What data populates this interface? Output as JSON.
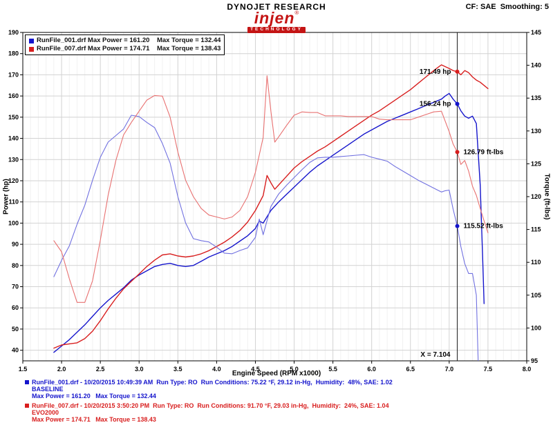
{
  "header": {
    "brand": "DYNOJET RESEARCH",
    "logo_text": "injen",
    "logo_reg": "®",
    "logo_sub": "TECHNOLOGY",
    "settings": "CF: SAE  Smoothing: 5"
  },
  "legend": {
    "rows": [
      {
        "color": "#1414cc",
        "text": "RunFile_001.drf Max Power = 161.20    Max Torque = 132.44"
      },
      {
        "color": "#d81e1e",
        "text": "RunFile_007.drf Max Power = 174.71    Max Torque = 138.43"
      }
    ]
  },
  "chart_data": {
    "type": "line",
    "title": "",
    "xlabel": "Engine Speed (RPM x1000)",
    "ylabel_left": "Power (hp)",
    "ylabel_right": "Torque (ft-lbs)",
    "x_range": [
      1.5,
      8.0
    ],
    "y_left_range": [
      35,
      190
    ],
    "y_right_range": [
      95,
      145
    ],
    "x_ticks": [
      1.5,
      2,
      2.5,
      3,
      3.5,
      4,
      4.5,
      5,
      5.5,
      6,
      6.5,
      7,
      7.5,
      8
    ],
    "x_tick_labels": [
      "1.5",
      "2.0",
      "2.5",
      "3.0",
      "3.5",
      "4.0",
      "4.5",
      "5.0",
      "5.5",
      "6.0",
      "6.5",
      "7.0",
      "7.5",
      "8.0"
    ],
    "y_left_ticks": [
      190,
      180,
      170,
      160,
      150,
      140,
      130,
      120,
      110,
      100,
      90,
      80,
      70,
      60,
      50,
      40
    ],
    "y_right_ticks": [
      145,
      140,
      135,
      130,
      125,
      120,
      115,
      110,
      105,
      100,
      95
    ],
    "grid": true,
    "legend_position": "top-left",
    "cursor_x": 7.104,
    "cursor_label": "X = 7.104",
    "series": [
      {
        "id": "power-baseline",
        "name": "RunFile_001.drf Power",
        "axis": "left",
        "color": "#1414cc",
        "width": 1.4,
        "points": [
          [
            1.9,
            39
          ],
          [
            2.0,
            42
          ],
          [
            2.1,
            45
          ],
          [
            2.2,
            48.5
          ],
          [
            2.3,
            52
          ],
          [
            2.4,
            56
          ],
          [
            2.5,
            60
          ],
          [
            2.6,
            63.5
          ],
          [
            2.7,
            66.5
          ],
          [
            2.8,
            69.5
          ],
          [
            2.9,
            73.1
          ],
          [
            3.0,
            75.5
          ],
          [
            3.1,
            77.5
          ],
          [
            3.2,
            79.5
          ],
          [
            3.3,
            80.5
          ],
          [
            3.4,
            81
          ],
          [
            3.5,
            80
          ],
          [
            3.6,
            79.5
          ],
          [
            3.7,
            80
          ],
          [
            3.8,
            82
          ],
          [
            3.9,
            84
          ],
          [
            4.0,
            85.5
          ],
          [
            4.1,
            87
          ],
          [
            4.2,
            89
          ],
          [
            4.3,
            91.5
          ],
          [
            4.4,
            94
          ],
          [
            4.5,
            97.5
          ],
          [
            4.55,
            101
          ],
          [
            4.6,
            100
          ],
          [
            4.7,
            106
          ],
          [
            4.8,
            110
          ],
          [
            4.9,
            113.5
          ],
          [
            5.0,
            117
          ],
          [
            5.1,
            120.5
          ],
          [
            5.2,
            124
          ],
          [
            5.3,
            127
          ],
          [
            5.4,
            129.5
          ],
          [
            5.5,
            132
          ],
          [
            5.6,
            134.5
          ],
          [
            5.7,
            137
          ],
          [
            5.8,
            139.5
          ],
          [
            5.9,
            142
          ],
          [
            6.0,
            144
          ],
          [
            6.1,
            146
          ],
          [
            6.2,
            148
          ],
          [
            6.3,
            149.5
          ],
          [
            6.4,
            151
          ],
          [
            6.5,
            152.5
          ],
          [
            6.6,
            154
          ],
          [
            6.7,
            155.5
          ],
          [
            6.8,
            157
          ],
          [
            6.9,
            158.5
          ],
          [
            6.95,
            160
          ],
          [
            7.0,
            161.2
          ],
          [
            7.05,
            158.5
          ],
          [
            7.104,
            156.24
          ],
          [
            7.15,
            153
          ],
          [
            7.2,
            150.5
          ],
          [
            7.25,
            149.5
          ],
          [
            7.3,
            150.5
          ],
          [
            7.35,
            147
          ],
          [
            7.4,
            118
          ],
          [
            7.43,
            85
          ],
          [
            7.45,
            62
          ]
        ]
      },
      {
        "id": "power-evo2000",
        "name": "RunFile_007.drf Power",
        "axis": "left",
        "color": "#d81e1e",
        "width": 1.4,
        "points": [
          [
            1.9,
            41
          ],
          [
            2.0,
            42.5
          ],
          [
            2.1,
            43
          ],
          [
            2.2,
            43.5
          ],
          [
            2.3,
            45.5
          ],
          [
            2.4,
            49
          ],
          [
            2.5,
            54
          ],
          [
            2.6,
            59.5
          ],
          [
            2.7,
            64.5
          ],
          [
            2.8,
            69
          ],
          [
            2.9,
            72.5
          ],
          [
            3.0,
            76
          ],
          [
            3.1,
            79.5
          ],
          [
            3.2,
            82.5
          ],
          [
            3.3,
            85
          ],
          [
            3.4,
            85.5
          ],
          [
            3.5,
            84.5
          ],
          [
            3.6,
            84
          ],
          [
            3.7,
            84.5
          ],
          [
            3.8,
            85.5
          ],
          [
            3.9,
            87
          ],
          [
            4.0,
            89
          ],
          [
            4.1,
            91
          ],
          [
            4.2,
            93.5
          ],
          [
            4.3,
            96.5
          ],
          [
            4.4,
            100.5
          ],
          [
            4.5,
            106
          ],
          [
            4.6,
            113
          ],
          [
            4.65,
            122.5
          ],
          [
            4.7,
            119
          ],
          [
            4.75,
            116
          ],
          [
            4.8,
            118
          ],
          [
            4.9,
            122
          ],
          [
            5.0,
            126
          ],
          [
            5.1,
            129
          ],
          [
            5.2,
            131.5
          ],
          [
            5.3,
            134
          ],
          [
            5.4,
            136
          ],
          [
            5.5,
            138.5
          ],
          [
            5.6,
            141
          ],
          [
            5.7,
            143.5
          ],
          [
            5.8,
            146
          ],
          [
            5.9,
            148.5
          ],
          [
            6.0,
            151
          ],
          [
            6.1,
            153
          ],
          [
            6.2,
            155.5
          ],
          [
            6.3,
            158
          ],
          [
            6.4,
            160.5
          ],
          [
            6.5,
            163
          ],
          [
            6.6,
            166
          ],
          [
            6.7,
            169
          ],
          [
            6.8,
            172
          ],
          [
            6.9,
            174.71
          ],
          [
            7.0,
            173
          ],
          [
            7.05,
            172
          ],
          [
            7.104,
            171.49
          ],
          [
            7.15,
            170
          ],
          [
            7.2,
            172
          ],
          [
            7.25,
            171
          ],
          [
            7.3,
            169
          ],
          [
            7.35,
            167.5
          ],
          [
            7.4,
            166.5
          ],
          [
            7.45,
            165
          ],
          [
            7.5,
            163.5
          ]
        ]
      },
      {
        "id": "torque-baseline",
        "name": "RunFile_001.drf Torque",
        "axis": "right",
        "color": "#7070e0",
        "width": 1.1,
        "points": [
          [
            1.9,
            107.8
          ],
          [
            2.0,
            110.3
          ],
          [
            2.1,
            112.5
          ],
          [
            2.2,
            115.8
          ],
          [
            2.3,
            118.7
          ],
          [
            2.4,
            122.5
          ],
          [
            2.5,
            126.0
          ],
          [
            2.6,
            128.3
          ],
          [
            2.7,
            129.3
          ],
          [
            2.8,
            130.3
          ],
          [
            2.9,
            132.4
          ],
          [
            3.0,
            132.2
          ],
          [
            3.1,
            131.3
          ],
          [
            3.2,
            130.5
          ],
          [
            3.3,
            128.1
          ],
          [
            3.4,
            125.1
          ],
          [
            3.5,
            120.0
          ],
          [
            3.6,
            116.0
          ],
          [
            3.7,
            113.6
          ],
          [
            3.8,
            113.3
          ],
          [
            3.9,
            113.1
          ],
          [
            4.0,
            112.3
          ],
          [
            4.1,
            111.4
          ],
          [
            4.2,
            111.3
          ],
          [
            4.3,
            111.8
          ],
          [
            4.4,
            112.2
          ],
          [
            4.5,
            113.8
          ],
          [
            4.55,
            116.6
          ],
          [
            4.6,
            114.2
          ],
          [
            4.7,
            118.5
          ],
          [
            4.8,
            120.4
          ],
          [
            4.9,
            121.7
          ],
          [
            5.0,
            122.9
          ],
          [
            5.1,
            124.1
          ],
          [
            5.2,
            125.2
          ],
          [
            5.3,
            125.9
          ],
          [
            5.4,
            126.0
          ],
          [
            5.5,
            126.0
          ],
          [
            5.6,
            126.1
          ],
          [
            5.7,
            126.2
          ],
          [
            5.8,
            126.3
          ],
          [
            5.9,
            126.4
          ],
          [
            6.0,
            126.0
          ],
          [
            6.1,
            125.7
          ],
          [
            6.2,
            125.4
          ],
          [
            6.3,
            124.6
          ],
          [
            6.4,
            123.9
          ],
          [
            6.5,
            123.2
          ],
          [
            6.6,
            122.5
          ],
          [
            6.7,
            121.9
          ],
          [
            6.8,
            121.3
          ],
          [
            6.9,
            120.7
          ],
          [
            6.95,
            120.9
          ],
          [
            7.0,
            121.0
          ],
          [
            7.05,
            118.1
          ],
          [
            7.104,
            115.52
          ],
          [
            7.15,
            112.4
          ],
          [
            7.2,
            109.8
          ],
          [
            7.25,
            108.3
          ],
          [
            7.3,
            108.3
          ],
          [
            7.35,
            105.0
          ],
          [
            7.4,
            83.8
          ]
        ]
      },
      {
        "id": "torque-evo2000",
        "name": "RunFile_007.drf Torque",
        "axis": "right",
        "color": "#e87070",
        "width": 1.1,
        "points": [
          [
            1.9,
            113.3
          ],
          [
            2.0,
            111.6
          ],
          [
            2.1,
            107.5
          ],
          [
            2.2,
            103.9
          ],
          [
            2.3,
            103.9
          ],
          [
            2.4,
            107.2
          ],
          [
            2.5,
            113.4
          ],
          [
            2.6,
            120.2
          ],
          [
            2.7,
            125.5
          ],
          [
            2.8,
            129.4
          ],
          [
            2.9,
            131.3
          ],
          [
            3.0,
            133.0
          ],
          [
            3.1,
            134.7
          ],
          [
            3.2,
            135.4
          ],
          [
            3.3,
            135.3
          ],
          [
            3.4,
            132.1
          ],
          [
            3.5,
            126.8
          ],
          [
            3.6,
            122.5
          ],
          [
            3.7,
            120.0
          ],
          [
            3.8,
            118.2
          ],
          [
            3.9,
            117.2
          ],
          [
            4.0,
            116.9
          ],
          [
            4.1,
            116.6
          ],
          [
            4.2,
            116.9
          ],
          [
            4.3,
            117.9
          ],
          [
            4.4,
            120.0
          ],
          [
            4.5,
            123.7
          ],
          [
            4.6,
            129.0
          ],
          [
            4.65,
            138.4
          ],
          [
            4.7,
            133.0
          ],
          [
            4.75,
            128.3
          ],
          [
            4.8,
            129.1
          ],
          [
            4.9,
            130.8
          ],
          [
            5.0,
            132.4
          ],
          [
            5.1,
            132.9
          ],
          [
            5.2,
            132.8
          ],
          [
            5.3,
            132.8
          ],
          [
            5.4,
            132.3
          ],
          [
            5.5,
            132.3
          ],
          [
            5.6,
            132.3
          ],
          [
            5.7,
            132.2
          ],
          [
            5.8,
            132.2
          ],
          [
            5.9,
            132.2
          ],
          [
            6.0,
            132.2
          ],
          [
            6.1,
            131.8
          ],
          [
            6.2,
            131.7
          ],
          [
            6.3,
            131.7
          ],
          [
            6.4,
            131.7
          ],
          [
            6.5,
            131.7
          ],
          [
            6.6,
            132.1
          ],
          [
            6.7,
            132.5
          ],
          [
            6.8,
            132.9
          ],
          [
            6.9,
            133.0
          ],
          [
            7.0,
            129.9
          ],
          [
            7.05,
            128.0
          ],
          [
            7.104,
            126.79
          ],
          [
            7.15,
            124.9
          ],
          [
            7.2,
            125.5
          ],
          [
            7.25,
            123.9
          ],
          [
            7.3,
            121.6
          ],
          [
            7.35,
            120.2
          ],
          [
            7.4,
            118.2
          ],
          [
            7.45,
            116.3
          ],
          [
            7.5,
            114.5
          ]
        ]
      }
    ],
    "markers": [
      {
        "label": "171.49 hp",
        "axis": "left",
        "value": 171.49,
        "dot_color": "#d81e1e",
        "side": "left"
      },
      {
        "label": "156.24 hp",
        "axis": "left",
        "value": 156.24,
        "dot_color": "#1414cc",
        "side": "left"
      },
      {
        "label": "126.79 ft-lbs",
        "axis": "right",
        "value": 126.79,
        "dot_color": "#d81e1e",
        "side": "right"
      },
      {
        "label": "115.52 ft-lbs",
        "axis": "right",
        "value": 115.52,
        "dot_color": "#1414cc",
        "side": "right"
      }
    ]
  },
  "footer": {
    "runs": [
      {
        "color": "#1414cc",
        "line1": "RunFile_001.drf - 10/20/2015 10:49:39 AM  Run Type: RO  Run Conditions: 75.22 °F, 29.12 in-Hg,  Humidity:  48%, SAE: 1.02",
        "line2": "BASELINE",
        "line3": "Max Power = 161.20   Max Torque = 132.44"
      },
      {
        "color": "#d81e1e",
        "line1": "RunFile_007.drf - 10/20/2015 3:50:20 PM  Run Type: RO  Run Conditions: 91.70 °F, 29.03 in-Hg,  Humidity:  24%, SAE: 1.04",
        "line2": "EVO2000",
        "line3": "Max Power = 174.71   Max Torque = 138.43"
      }
    ]
  }
}
